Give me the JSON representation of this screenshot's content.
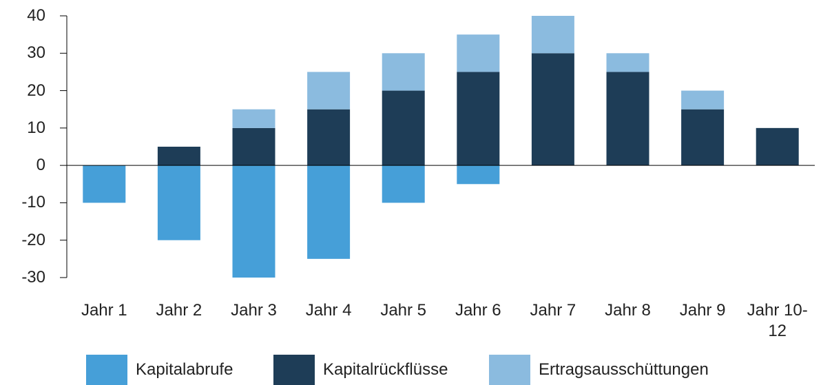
{
  "chart_data": {
    "type": "bar",
    "stacked": true,
    "categories": [
      "Jahr 1",
      "Jahr 2",
      "Jahr 3",
      "Jahr 4",
      "Jahr 5",
      "Jahr 6",
      "Jahr 7",
      "Jahr 8",
      "Jahr 9",
      "Jahr 10-12"
    ],
    "series": [
      {
        "name": "Kapitalabrufe",
        "color": "#469fd8",
        "values": [
          -10,
          -20,
          -30,
          -25,
          -10,
          -5,
          0,
          0,
          0,
          0
        ]
      },
      {
        "name": "Kapitalrückflüsse",
        "color": "#1e3d57",
        "values": [
          0,
          5,
          10,
          15,
          20,
          25,
          30,
          25,
          15,
          10
        ]
      },
      {
        "name": "Ertragsausschüttungen",
        "color": "#8bbbdf",
        "values": [
          0,
          0,
          5,
          10,
          10,
          10,
          10,
          5,
          5,
          0
        ]
      }
    ],
    "ylim": [
      -30,
      40
    ],
    "yticks": [
      -30,
      -20,
      -10,
      0,
      10,
      20,
      30,
      40
    ],
    "grid": false,
    "legend": "bottom"
  }
}
